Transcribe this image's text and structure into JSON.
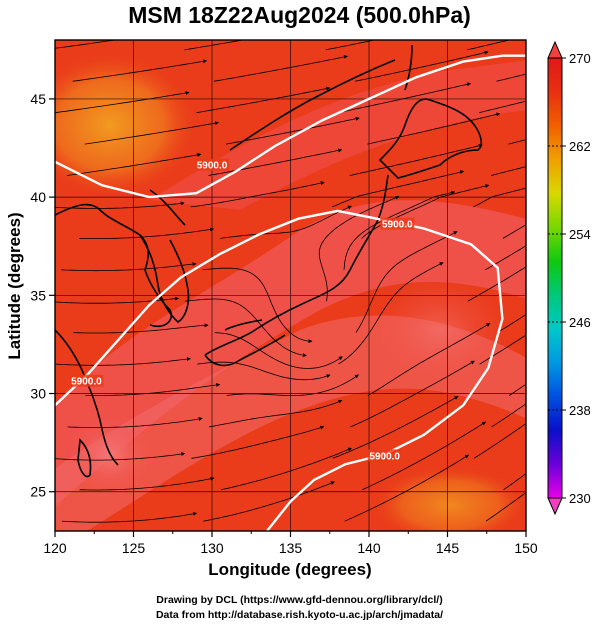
{
  "title": "MSM 18Z22Aug2024 (500.0hPa)",
  "map": {
    "xlabel": "Longitude (degrees)",
    "ylabel": "Latitude  (degrees)",
    "xlim": [
      120,
      150
    ],
    "ylim": [
      23,
      48
    ],
    "xticks": [
      "120",
      "125",
      "130",
      "135",
      "140",
      "145",
      "150"
    ],
    "yticks": [
      "25",
      "30",
      "35",
      "40",
      "45"
    ],
    "contour_label": "5900.0",
    "contour_labels": [
      {
        "text": "5900.0",
        "lon": 130.0,
        "lat": 41.6
      },
      {
        "text": "5900.0",
        "lon": 141.8,
        "lat": 38.6
      },
      {
        "text": "5900.0",
        "lon": 141.0,
        "lat": 26.8
      },
      {
        "text": "5900.0",
        "lon": 122.0,
        "lat": 30.6
      }
    ],
    "contours": [
      [
        [
          120.0,
          41.8
        ],
        [
          123.0,
          40.6
        ],
        [
          126.0,
          40.0
        ],
        [
          129.0,
          40.2
        ],
        [
          131.5,
          41.3
        ],
        [
          134.0,
          42.6
        ],
        [
          137.0,
          43.9
        ],
        [
          140.0,
          45.0
        ],
        [
          143.0,
          46.1
        ],
        [
          146.0,
          46.9
        ],
        [
          148.5,
          47.2
        ],
        [
          150.0,
          47.2
        ]
      ],
      [
        [
          120.0,
          29.4
        ],
        [
          122.0,
          30.9
        ],
        [
          124.0,
          32.7
        ],
        [
          126.0,
          34.5
        ],
        [
          128.0,
          35.9
        ],
        [
          130.5,
          37.1
        ],
        [
          133.0,
          38.1
        ],
        [
          135.5,
          38.9
        ],
        [
          138.0,
          39.3
        ],
        [
          140.5,
          38.9
        ],
        [
          143.5,
          38.4
        ],
        [
          146.5,
          37.6
        ],
        [
          148.2,
          36.4
        ],
        [
          148.5,
          33.8
        ],
        [
          147.6,
          31.3
        ],
        [
          146.0,
          29.4
        ],
        [
          143.5,
          27.9
        ],
        [
          141.0,
          26.9
        ],
        [
          138.5,
          26.4
        ],
        [
          136.5,
          25.6
        ],
        [
          135.0,
          24.5
        ],
        [
          133.5,
          23.0
        ]
      ]
    ]
  },
  "colorbar": {
    "ticks": [
      "270",
      "262",
      "254",
      "246",
      "238",
      "230"
    ],
    "min": 230,
    "max": 270,
    "colors": [
      "#e800e8",
      "#6a00d8",
      "#0a10c8",
      "#0050e0",
      "#0098e0",
      "#00c8c8",
      "#00c878",
      "#10c810",
      "#78d800",
      "#d8d800",
      "#f0a000",
      "#f06000",
      "#e83010",
      "#e01818"
    ]
  },
  "colors": {
    "warm_field": "#ea3b1a",
    "ridge_axis": "#f26b6b",
    "cool_pocket": "#f08a1e",
    "contour": "#ffffff"
  },
  "footer": {
    "line1": "Drawing by DCL (https://www.gfd-dennou.org/library/dcl/)",
    "line2": "Data from http://database.rish.kyoto-u.ac.jp/arch/jmadata/"
  }
}
